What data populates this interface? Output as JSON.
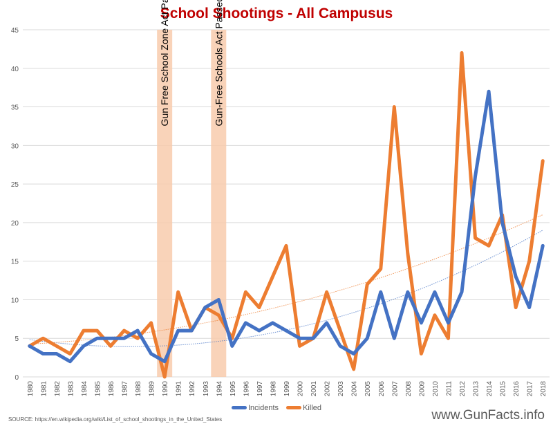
{
  "chart_data": {
    "type": "line",
    "title": "School Shootings - All Campusus",
    "x": [
      1980,
      1981,
      1982,
      1983,
      1984,
      1985,
      1986,
      1987,
      1988,
      1989,
      1990,
      1991,
      1992,
      1993,
      1994,
      1995,
      1996,
      1997,
      1998,
      1999,
      2000,
      2001,
      2002,
      2003,
      2004,
      2005,
      2006,
      2007,
      2008,
      2009,
      2010,
      2011,
      2012,
      2013,
      2014,
      2015,
      2016,
      2017,
      2018
    ],
    "ylim": [
      0,
      45
    ],
    "yticks": [
      0,
      5,
      10,
      15,
      20,
      25,
      30,
      35,
      40,
      45
    ],
    "grid": true,
    "legend_placement": "bottom",
    "series": [
      {
        "name": "Incidents",
        "color": "#4472c4",
        "values": [
          4,
          3,
          3,
          2,
          4,
          5,
          5,
          5,
          6,
          3,
          2,
          6,
          6,
          9,
          10,
          4,
          7,
          6,
          7,
          6,
          5,
          5,
          7,
          4,
          3,
          5,
          11,
          5,
          11,
          7,
          11,
          7,
          11,
          26,
          37,
          20,
          13,
          9,
          17
        ]
      },
      {
        "name": "Killed",
        "color": "#ed7d31",
        "values": [
          4,
          5,
          4,
          3,
          6,
          6,
          4,
          6,
          5,
          7,
          0,
          11,
          6,
          9,
          8,
          5,
          11,
          9,
          13,
          17,
          4,
          5,
          11,
          6,
          1,
          12,
          14,
          35,
          16,
          3,
          8,
          5,
          42,
          18,
          17,
          21,
          9,
          15,
          28
        ]
      }
    ],
    "trendlines": "dotted, one per series",
    "annotations": [
      {
        "year": 1990,
        "label": "Gun Free School Zone Act Passed",
        "color": "#f8cbad"
      },
      {
        "year": 1994,
        "label": "Gun-Free Schools Act Passed",
        "color": "#f8cbad"
      }
    ],
    "source": "SOURCE: https://en.wikipedia.org/wiki/List_of_school_shootings_in_the_United_States",
    "watermark": "www.GunFacts.info"
  }
}
